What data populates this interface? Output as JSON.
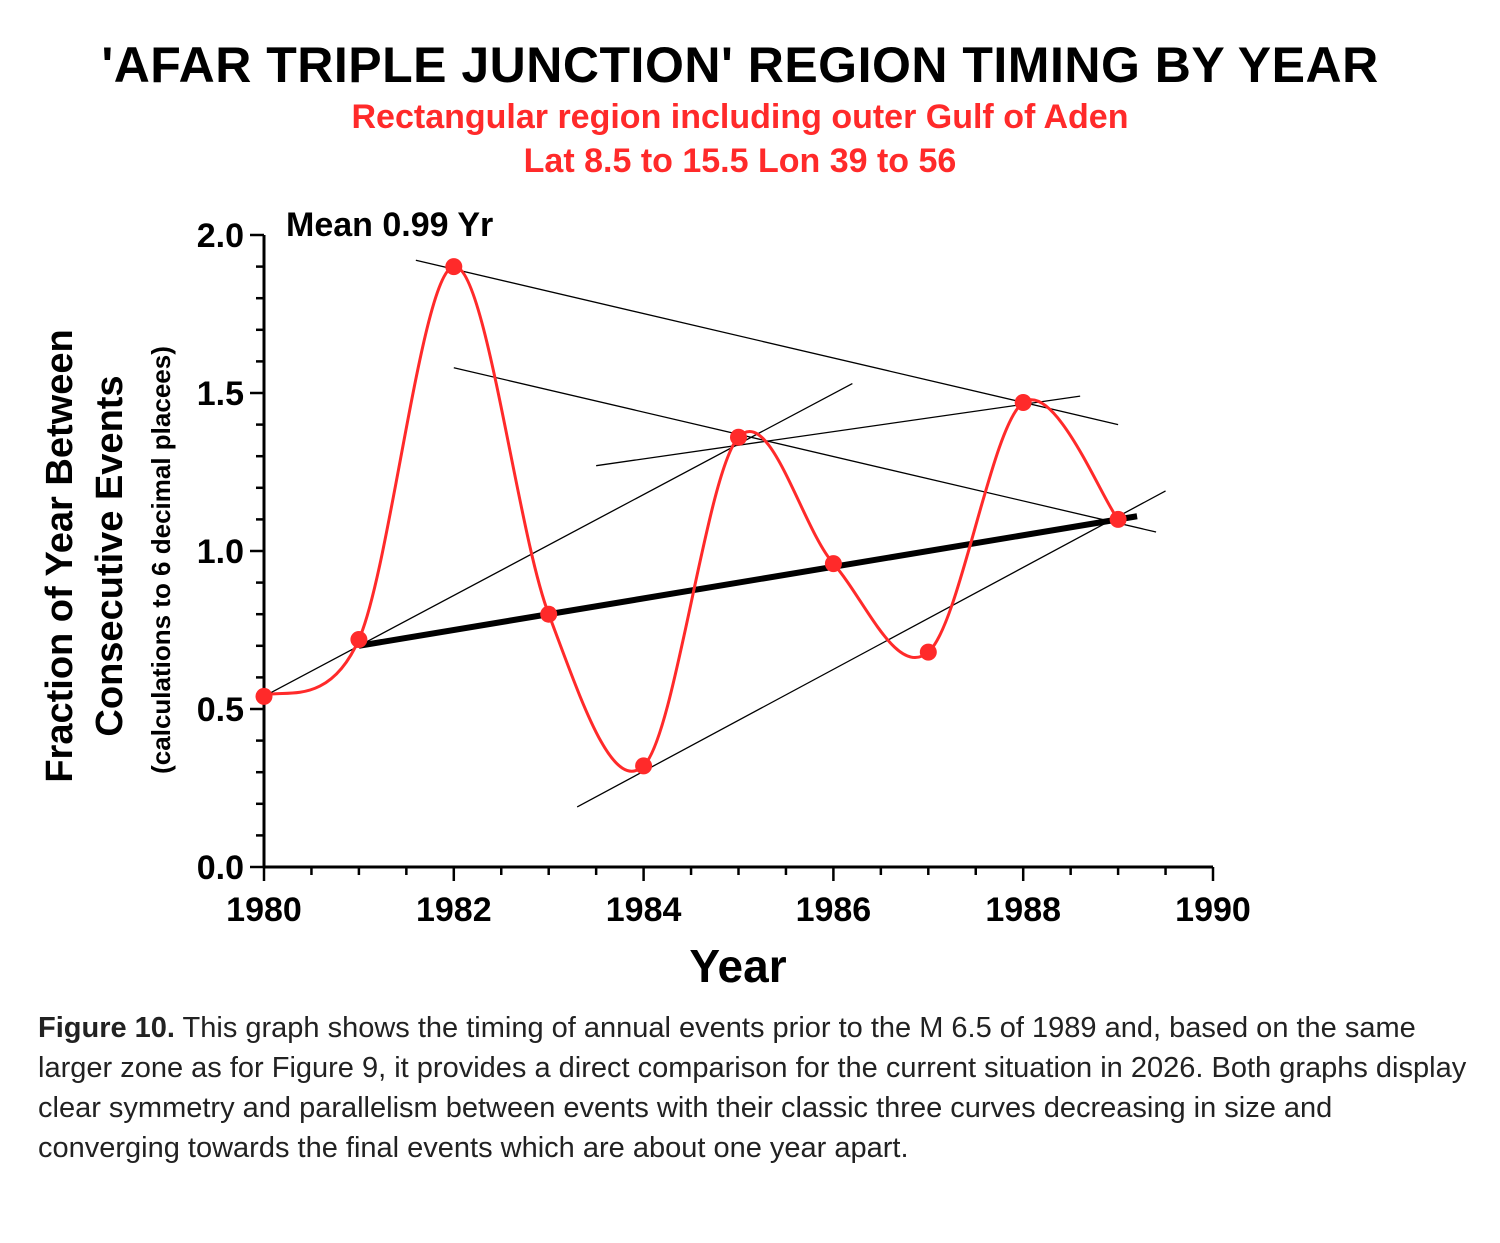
{
  "chart_data": {
    "type": "line",
    "title": "'AFAR TRIPLE JUNCTION' REGION TIMING BY YEAR",
    "subtitle_lines": [
      "Rectangular region including outer Gulf of Aden",
      "Lat 8.5 to 15.5 Lon 39 to 56"
    ],
    "xlabel": "Year",
    "ylabel_lines": [
      "Fraction of Year Between",
      "Consecutive Events",
      "(calculations to 6 decimal placees)"
    ],
    "xlim": [
      1980,
      1990
    ],
    "ylim": [
      0,
      2
    ],
    "xticks": [
      1980,
      1982,
      1984,
      1986,
      1988,
      1990
    ],
    "yticks": [
      "0.0",
      "0.5",
      "1.0",
      "1.5",
      "2.0"
    ],
    "annotation": "Mean 0.99 Yr",
    "series": [
      {
        "color": "#ff2a2a",
        "x": [
          1980,
          1981,
          1982,
          1983,
          1984,
          1985,
          1986,
          1987,
          1988,
          1989
        ],
        "y": [
          0.54,
          0.72,
          1.9,
          0.8,
          0.32,
          1.36,
          0.96,
          0.68,
          1.47,
          1.1
        ]
      }
    ],
    "trend_lines": [
      {
        "from": [
          1981,
          0.7
        ],
        "to": [
          1989.2,
          1.11
        ],
        "weight": "bold"
      },
      {
        "from": [
          1981.6,
          1.92
        ],
        "to": [
          1989,
          1.4
        ],
        "weight": "thin"
      },
      {
        "from": [
          1982,
          1.58
        ],
        "to": [
          1989.4,
          1.06
        ],
        "weight": "thin"
      },
      {
        "from": [
          1983.5,
          1.27
        ],
        "to": [
          1988.6,
          1.49
        ],
        "weight": "thin"
      },
      {
        "from": [
          1980,
          0.54
        ],
        "to": [
          1986.2,
          1.53
        ],
        "weight": "thin"
      },
      {
        "from": [
          1983.3,
          0.19
        ],
        "to": [
          1989.5,
          1.19
        ],
        "weight": "thin"
      }
    ]
  },
  "caption": {
    "label": "Figure 10.",
    "text": " This graph shows the timing of annual events prior to the M 6.5 of 1989 and, based on the same larger zone as for Figure 9, it provides a direct comparison for the current situation in 2026. Both graphs display clear symmetry and parallelism between events with their classic three curves decreasing in size and converging towards the final events which are about one year apart."
  }
}
